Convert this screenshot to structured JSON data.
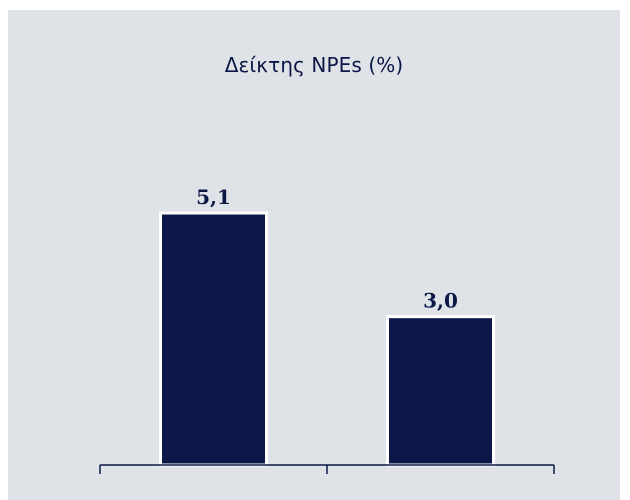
{
  "chart_data": {
    "type": "bar",
    "title": "Δείκτης NPEs (%)",
    "categories": [
      "",
      ""
    ],
    "values": [
      5.1,
      3.0
    ],
    "value_labels": [
      "5,1",
      "3,0"
    ],
    "ylim": [
      0,
      8.6
    ],
    "xlabel": "",
    "ylabel": "",
    "grid": false,
    "legend": "none",
    "colors": {
      "bar": "#0b1746",
      "bar_outline": "#ffffff",
      "background": "#dfe3e8",
      "axis": "#0b1746",
      "text": "#0b1746"
    }
  }
}
